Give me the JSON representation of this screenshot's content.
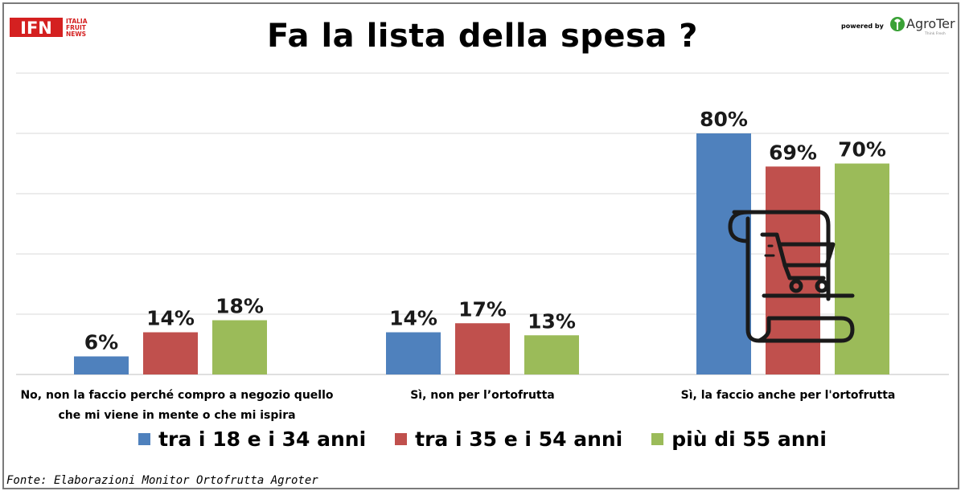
{
  "branding": {
    "ifn_logo_letters": "IFN",
    "ifn_logo_lines": [
      "ITALIA",
      "FRUIT",
      "NEWS"
    ],
    "powered_by": "powered by",
    "agroter_name": "AgroTer",
    "agroter_tagline": "Think Fresh"
  },
  "source": "Fonte: Elaborazioni Monitor Ortofrutta Agroter",
  "colors": {
    "series1": "#4f81bd",
    "series2": "#c0504d",
    "series3": "#9bbb59",
    "ifn_red": "#d42020",
    "agroter_green": "#3aa136",
    "gridline": "#d9d9d9"
  },
  "chart_data": {
    "type": "bar",
    "title": "Fa la lista della spesa ?",
    "categories": [
      "No, non la faccio perché compro a negozio quello che mi viene in mente o che mi ispira",
      "Sì, non per l’ortofrutta",
      "Sì, la faccio anche per l'ortofrutta"
    ],
    "category_lines": [
      [
        "No, non la faccio perché compro a negozio quello",
        "che mi viene in mente o che mi ispira"
      ],
      [
        "Sì, non per l’ortofrutta"
      ],
      [
        "Sì, la faccio anche per l'ortofrutta"
      ]
    ],
    "series": [
      {
        "name": "tra i 18 e i 34 anni",
        "values": [
          6,
          14,
          80
        ],
        "labels": [
          "6%",
          "14%",
          "80%"
        ]
      },
      {
        "name": "tra i 35 e i 54 anni",
        "values": [
          14,
          17,
          69
        ],
        "labels": [
          "14%",
          "17%",
          "69%"
        ]
      },
      {
        "name": "più di 55 anni",
        "values": [
          18,
          13,
          70
        ],
        "labels": [
          "18%",
          "13%",
          "70%"
        ]
      }
    ],
    "ylim": [
      0,
      100
    ],
    "grid": true,
    "legend_position": "bottom",
    "decoration_icon": "shopping-list-cart-icon"
  }
}
